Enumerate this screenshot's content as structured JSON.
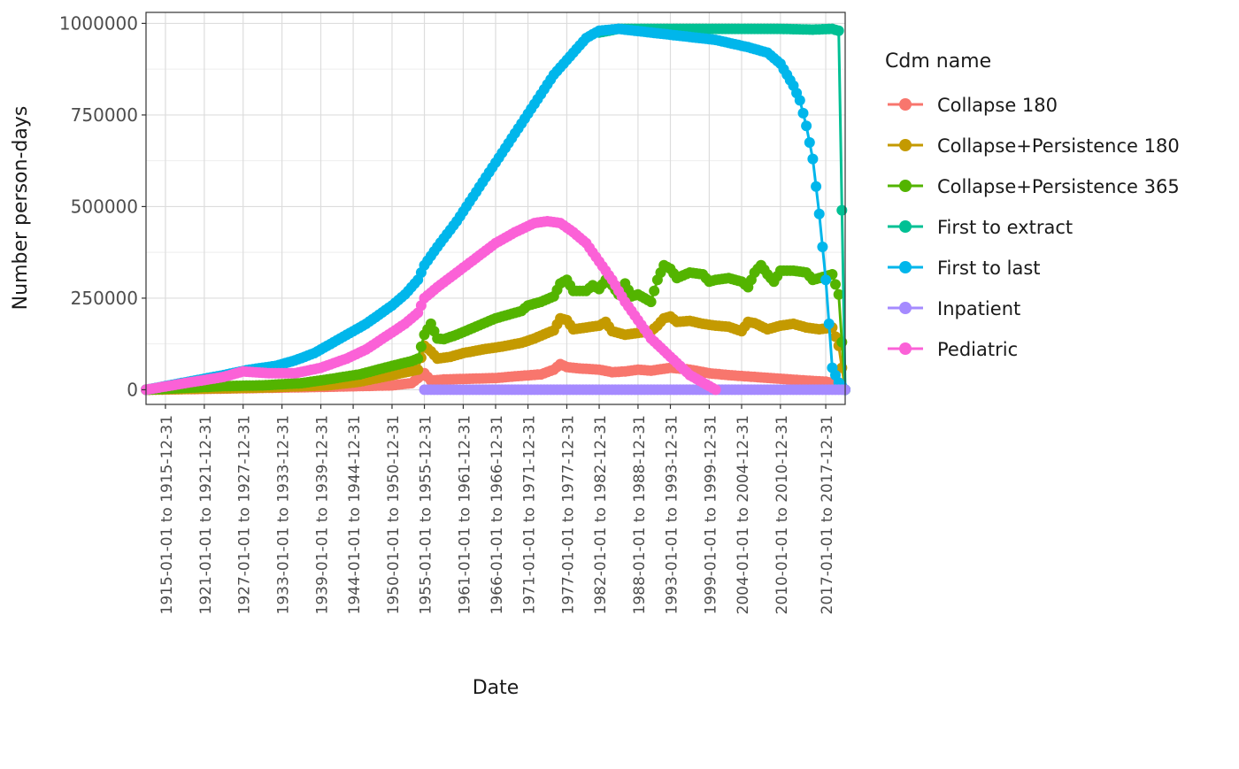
{
  "chart_data": {
    "type": "line",
    "xlabel": "Date",
    "ylabel": "Number person-days",
    "legend_title": "Cdm name",
    "legend_position": "right",
    "grid": true,
    "x_start_year": 1912,
    "x_end_year": 2020,
    "ylim": [
      -40000,
      1030000
    ],
    "y_ticks": [
      0,
      250000,
      500000,
      750000,
      1000000
    ],
    "y_tick_labels": [
      "0",
      "250000",
      "500000",
      "750000",
      "1000000"
    ],
    "x_tick_years": [
      1915,
      1921,
      1927,
      1933,
      1939,
      1944,
      1950,
      1955,
      1961,
      1966,
      1971,
      1977,
      1982,
      1988,
      1993,
      1999,
      2004,
      2010,
      2017
    ],
    "x_tick_labels": [
      "1915-01-01 to 1915-12-31",
      "1921-01-01 to 1921-12-31",
      "1927-01-01 to 1927-12-31",
      "1933-01-01 to 1933-12-31",
      "1939-01-01 to 1939-12-31",
      "1944-01-01 to 1944-12-31",
      "1950-01-01 to 1950-12-31",
      "1955-01-01 to 1955-12-31",
      "1961-01-01 to 1961-12-31",
      "1966-01-01 to 1966-12-31",
      "1971-01-01 to 1971-12-31",
      "1977-01-01 to 1977-12-31",
      "1982-01-01 to 1982-12-31",
      "1988-01-01 to 1988-12-31",
      "1993-01-01 to 1993-12-31",
      "1999-01-01 to 1999-12-31",
      "2004-01-01 to 2004-12-31",
      "2010-01-01 to 2010-12-31",
      "2017-01-01 to 2017-12-31"
    ],
    "series": [
      {
        "name": "Collapse 180",
        "color": "#F8766D",
        "points": [
          [
            1912,
            0
          ],
          [
            1920,
            2000
          ],
          [
            1930,
            5000
          ],
          [
            1940,
            8000
          ],
          [
            1950,
            12000
          ],
          [
            1953,
            18000
          ],
          [
            1955,
            45000
          ],
          [
            1956,
            25000
          ],
          [
            1958,
            28000
          ],
          [
            1962,
            30000
          ],
          [
            1966,
            32000
          ],
          [
            1970,
            38000
          ],
          [
            1973,
            42000
          ],
          [
            1975,
            55000
          ],
          [
            1976,
            70000
          ],
          [
            1977,
            62000
          ],
          [
            1979,
            58000
          ],
          [
            1982,
            55000
          ],
          [
            1984,
            48000
          ],
          [
            1986,
            50000
          ],
          [
            1988,
            55000
          ],
          [
            1990,
            52000
          ],
          [
            1993,
            60000
          ],
          [
            1996,
            55000
          ],
          [
            1999,
            45000
          ],
          [
            2002,
            40000
          ],
          [
            2006,
            35000
          ],
          [
            2010,
            30000
          ],
          [
            2014,
            25000
          ],
          [
            2017,
            22000
          ],
          [
            2019,
            15000
          ],
          [
            2020,
            0
          ]
        ]
      },
      {
        "name": "Collapse+Persistence 180",
        "color": "#C49A00",
        "points": [
          [
            1912,
            0
          ],
          [
            1920,
            3000
          ],
          [
            1930,
            6000
          ],
          [
            1940,
            12000
          ],
          [
            1945,
            22000
          ],
          [
            1950,
            40000
          ],
          [
            1954,
            55000
          ],
          [
            1955,
            120000
          ],
          [
            1956,
            105000
          ],
          [
            1957,
            85000
          ],
          [
            1959,
            90000
          ],
          [
            1961,
            100000
          ],
          [
            1964,
            110000
          ],
          [
            1967,
            118000
          ],
          [
            1970,
            128000
          ],
          [
            1972,
            140000
          ],
          [
            1974,
            155000
          ],
          [
            1975,
            162000
          ],
          [
            1976,
            195000
          ],
          [
            1977,
            190000
          ],
          [
            1978,
            165000
          ],
          [
            1980,
            170000
          ],
          [
            1982,
            175000
          ],
          [
            1983,
            185000
          ],
          [
            1984,
            160000
          ],
          [
            1986,
            150000
          ],
          [
            1988,
            155000
          ],
          [
            1990,
            160000
          ],
          [
            1991,
            175000
          ],
          [
            1992,
            195000
          ],
          [
            1993,
            200000
          ],
          [
            1994,
            185000
          ],
          [
            1996,
            188000
          ],
          [
            1998,
            180000
          ],
          [
            2000,
            175000
          ],
          [
            2002,
            172000
          ],
          [
            2004,
            160000
          ],
          [
            2005,
            185000
          ],
          [
            2006,
            182000
          ],
          [
            2008,
            165000
          ],
          [
            2010,
            175000
          ],
          [
            2012,
            180000
          ],
          [
            2014,
            170000
          ],
          [
            2016,
            165000
          ],
          [
            2018,
            170000
          ],
          [
            2019,
            120000
          ],
          [
            2020,
            0
          ]
        ]
      },
      {
        "name": "Collapse+Persistence 365",
        "color": "#53B400",
        "points": [
          [
            1912,
            0
          ],
          [
            1918,
            5000
          ],
          [
            1924,
            10000
          ],
          [
            1930,
            12000
          ],
          [
            1936,
            18000
          ],
          [
            1940,
            28000
          ],
          [
            1945,
            42000
          ],
          [
            1950,
            65000
          ],
          [
            1953,
            78000
          ],
          [
            1954,
            85000
          ],
          [
            1955,
            150000
          ],
          [
            1956,
            180000
          ],
          [
            1957,
            140000
          ],
          [
            1958,
            138000
          ],
          [
            1960,
            150000
          ],
          [
            1962,
            165000
          ],
          [
            1964,
            180000
          ],
          [
            1966,
            195000
          ],
          [
            1968,
            205000
          ],
          [
            1970,
            215000
          ],
          [
            1971,
            230000
          ],
          [
            1973,
            240000
          ],
          [
            1975,
            255000
          ],
          [
            1976,
            290000
          ],
          [
            1977,
            300000
          ],
          [
            1978,
            270000
          ],
          [
            1980,
            270000
          ],
          [
            1981,
            285000
          ],
          [
            1982,
            275000
          ],
          [
            1983,
            300000
          ],
          [
            1984,
            285000
          ],
          [
            1985,
            260000
          ],
          [
            1986,
            290000
          ],
          [
            1987,
            255000
          ],
          [
            1988,
            260000
          ],
          [
            1989,
            250000
          ],
          [
            1990,
            240000
          ],
          [
            1991,
            300000
          ],
          [
            1992,
            340000
          ],
          [
            1993,
            330000
          ],
          [
            1994,
            305000
          ],
          [
            1996,
            320000
          ],
          [
            1998,
            315000
          ],
          [
            1999,
            295000
          ],
          [
            2000,
            300000
          ],
          [
            2002,
            305000
          ],
          [
            2004,
            295000
          ],
          [
            2005,
            280000
          ],
          [
            2006,
            320000
          ],
          [
            2007,
            340000
          ],
          [
            2008,
            315000
          ],
          [
            2009,
            295000
          ],
          [
            2010,
            325000
          ],
          [
            2012,
            325000
          ],
          [
            2014,
            320000
          ],
          [
            2015,
            300000
          ],
          [
            2017,
            310000
          ],
          [
            2018,
            315000
          ],
          [
            2019,
            260000
          ],
          [
            2020,
            0
          ]
        ]
      },
      {
        "name": "First to extract",
        "color": "#00C094",
        "points": [
          [
            1982,
            975000
          ],
          [
            1985,
            985000
          ],
          [
            1990,
            985000
          ],
          [
            2000,
            985000
          ],
          [
            2010,
            985000
          ],
          [
            2015,
            983000
          ],
          [
            2018,
            985000
          ],
          [
            2019,
            980000
          ],
          [
            2020,
            0
          ]
        ]
      },
      {
        "name": "First to last",
        "color": "#00B6EB",
        "points": [
          [
            1912,
            0
          ],
          [
            1918,
            20000
          ],
          [
            1924,
            40000
          ],
          [
            1928,
            55000
          ],
          [
            1932,
            65000
          ],
          [
            1935,
            80000
          ],
          [
            1938,
            100000
          ],
          [
            1942,
            140000
          ],
          [
            1946,
            180000
          ],
          [
            1950,
            230000
          ],
          [
            1952,
            260000
          ],
          [
            1954,
            300000
          ],
          [
            1955,
            340000
          ],
          [
            1957,
            390000
          ],
          [
            1960,
            460000
          ],
          [
            1963,
            540000
          ],
          [
            1966,
            620000
          ],
          [
            1969,
            700000
          ],
          [
            1972,
            780000
          ],
          [
            1975,
            860000
          ],
          [
            1978,
            920000
          ],
          [
            1980,
            960000
          ],
          [
            1982,
            980000
          ],
          [
            1985,
            985000
          ],
          [
            1990,
            975000
          ],
          [
            1995,
            965000
          ],
          [
            2000,
            955000
          ],
          [
            2005,
            935000
          ],
          [
            2008,
            920000
          ],
          [
            2010,
            890000
          ],
          [
            2011,
            860000
          ],
          [
            2012,
            830000
          ],
          [
            2013,
            790000
          ],
          [
            2014,
            720000
          ],
          [
            2015,
            630000
          ],
          [
            2016,
            480000
          ],
          [
            2017,
            300000
          ],
          [
            2018,
            60000
          ],
          [
            2019,
            20000
          ],
          [
            2020,
            0
          ]
        ]
      },
      {
        "name": "Inpatient",
        "color": "#A58AFF",
        "points": [
          [
            1955,
            0
          ],
          [
            1970,
            0
          ],
          [
            1985,
            0
          ],
          [
            2000,
            0
          ],
          [
            2015,
            0
          ],
          [
            2020,
            0
          ]
        ]
      },
      {
        "name": "Pediatric",
        "color": "#FB61D7",
        "points": [
          [
            1912,
            0
          ],
          [
            1918,
            18000
          ],
          [
            1924,
            35000
          ],
          [
            1927,
            50000
          ],
          [
            1931,
            45000
          ],
          [
            1935,
            45000
          ],
          [
            1939,
            60000
          ],
          [
            1943,
            85000
          ],
          [
            1946,
            110000
          ],
          [
            1949,
            145000
          ],
          [
            1952,
            180000
          ],
          [
            1954,
            210000
          ],
          [
            1955,
            250000
          ],
          [
            1957,
            280000
          ],
          [
            1960,
            320000
          ],
          [
            1963,
            360000
          ],
          [
            1966,
            400000
          ],
          [
            1969,
            430000
          ],
          [
            1972,
            455000
          ],
          [
            1974,
            460000
          ],
          [
            1976,
            455000
          ],
          [
            1978,
            430000
          ],
          [
            1980,
            400000
          ],
          [
            1982,
            350000
          ],
          [
            1984,
            300000
          ],
          [
            1986,
            240000
          ],
          [
            1988,
            190000
          ],
          [
            1990,
            140000
          ],
          [
            1993,
            90000
          ],
          [
            1996,
            40000
          ],
          [
            1999,
            10000
          ],
          [
            2000,
            0
          ]
        ]
      }
    ]
  }
}
